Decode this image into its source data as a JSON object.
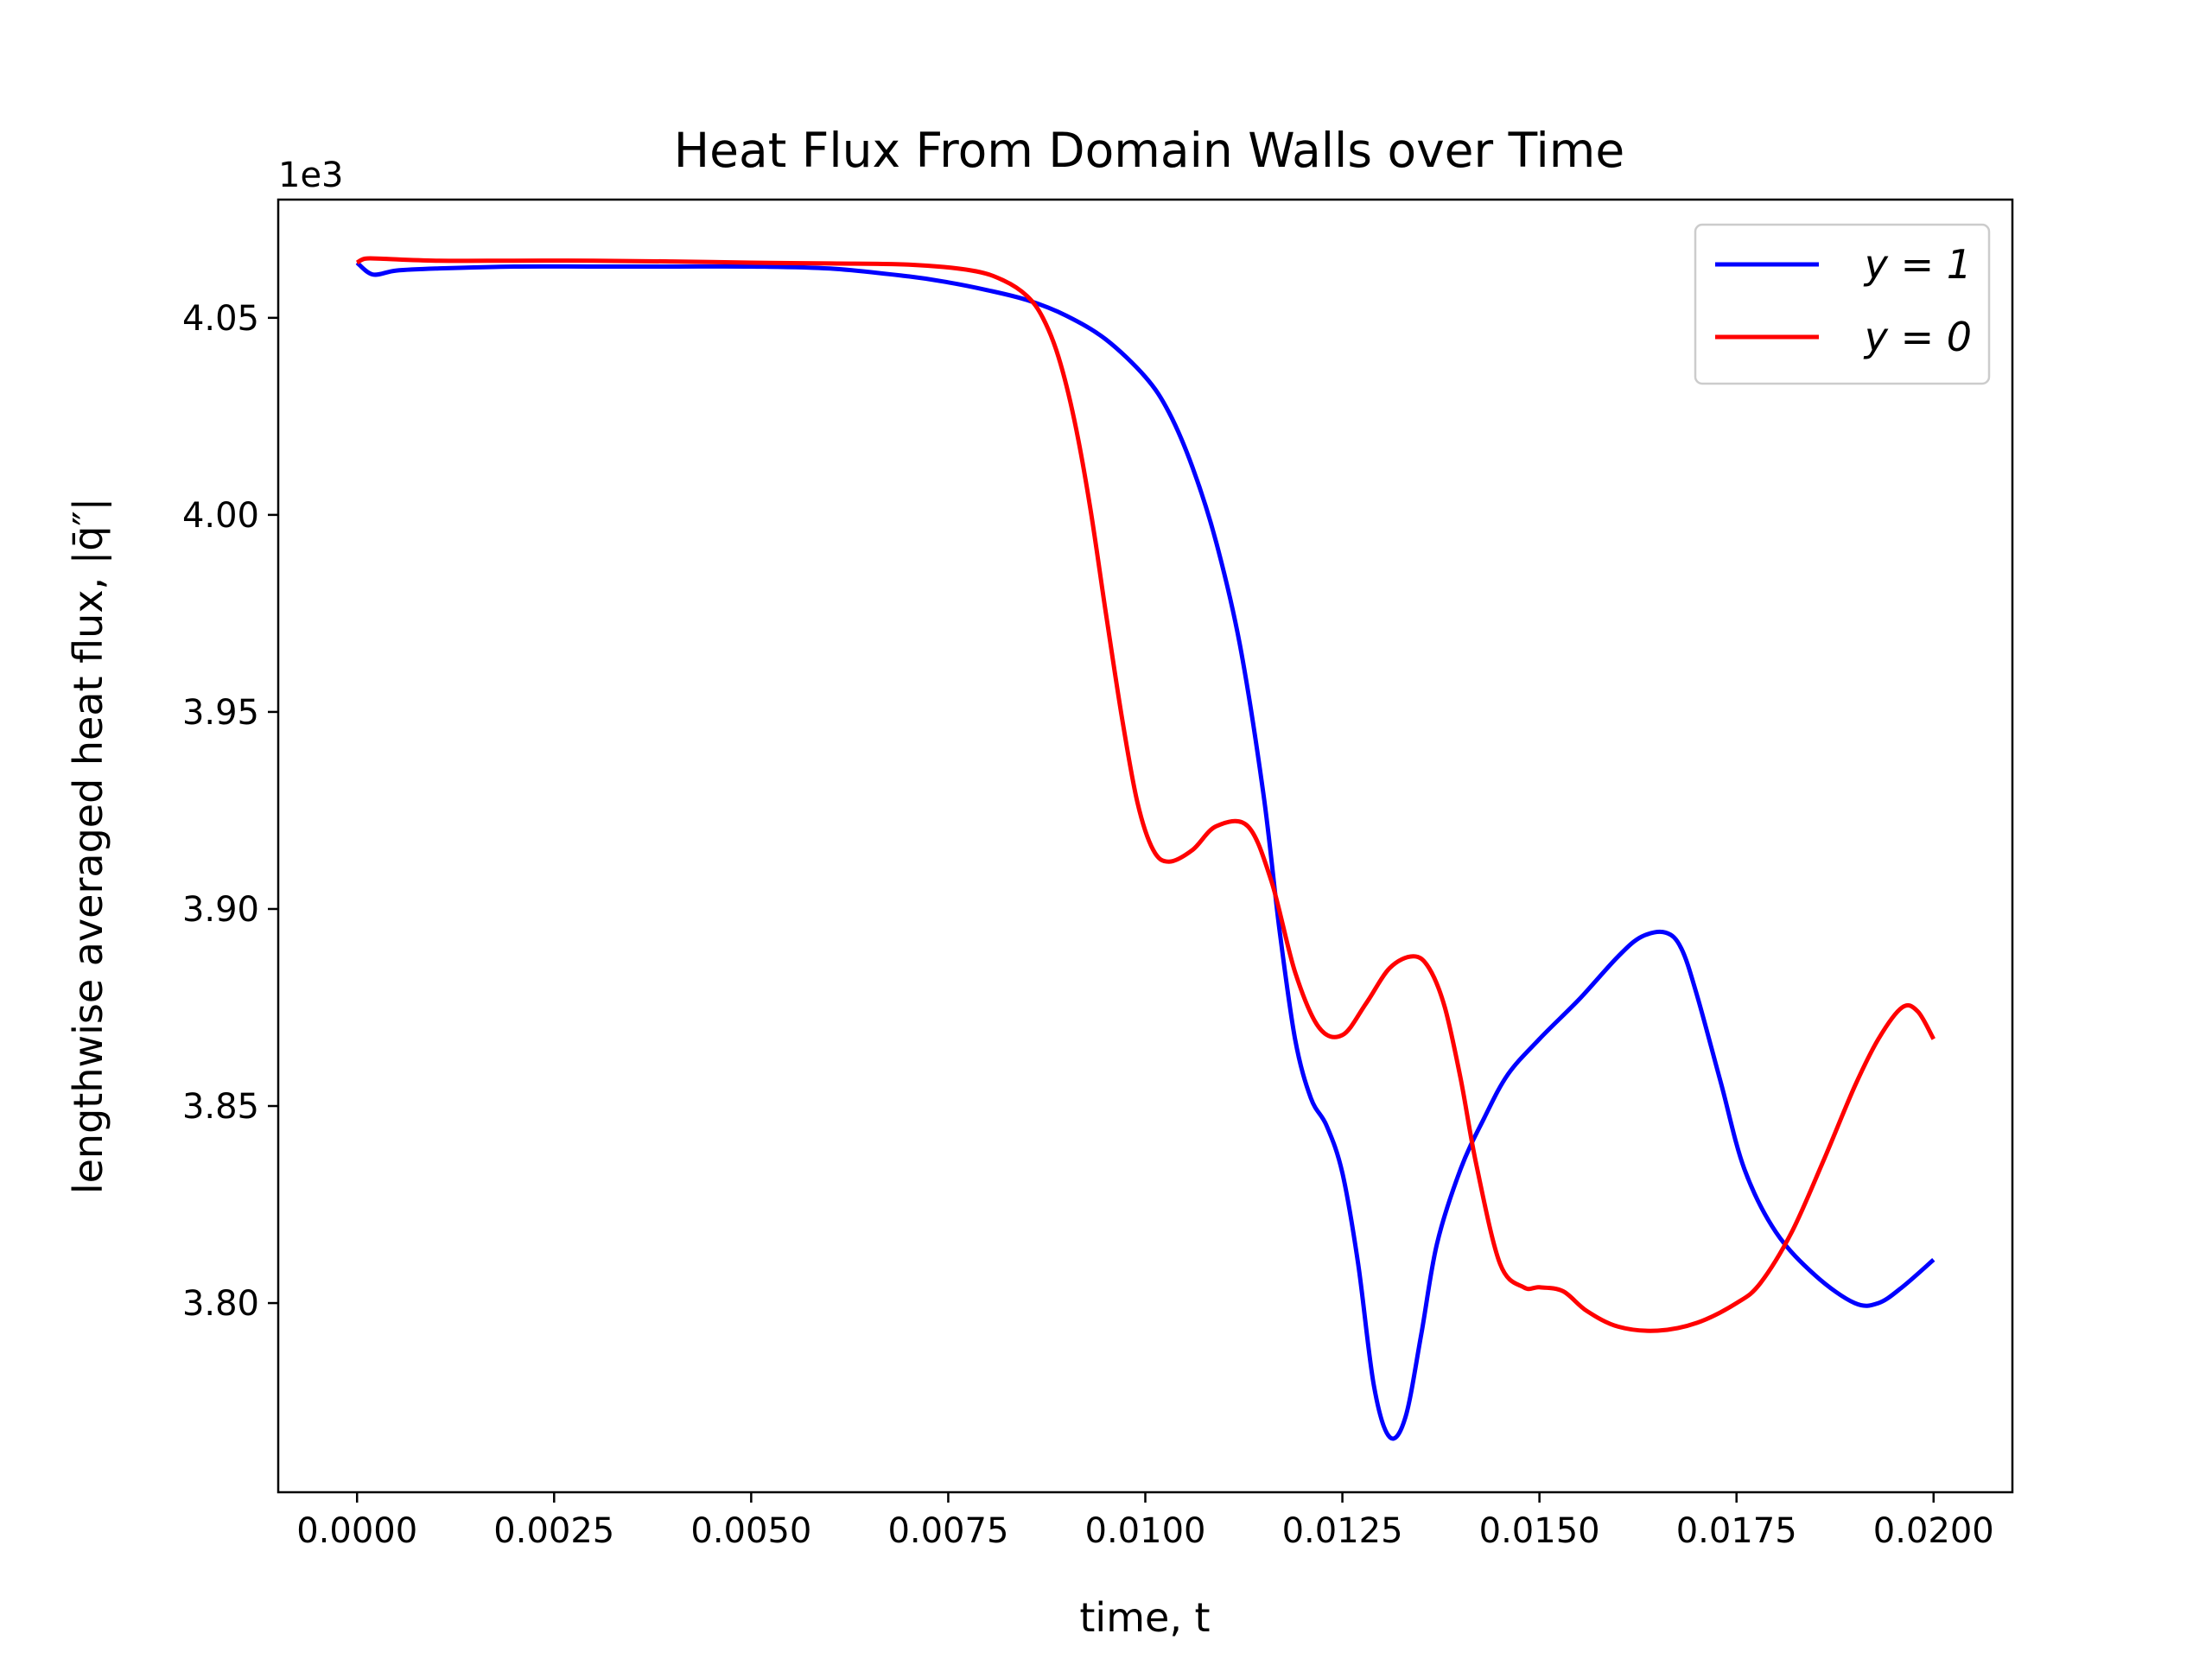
{
  "chart_data": {
    "type": "line",
    "title": "Heat Flux From Domain Walls over Time",
    "xlabel": "time, t",
    "ylabel": "lengthwise averaged heat flux, |q̄″|",
    "y_offset_text": "1e3",
    "xlim": [
      -0.001,
      0.021
    ],
    "ylim": [
      3.752,
      4.08
    ],
    "x_ticks": [
      0.0,
      0.0025,
      0.005,
      0.0075,
      0.01,
      0.0125,
      0.015,
      0.0175,
      0.02
    ],
    "x_tick_labels": [
      "0.0000",
      "0.0025",
      "0.0050",
      "0.0075",
      "0.0100",
      "0.0125",
      "0.0150",
      "0.0175",
      "0.0200"
    ],
    "y_ticks": [
      3.8,
      3.85,
      3.9,
      3.95,
      4.0,
      4.05
    ],
    "y_tick_labels": [
      "3.80",
      "3.85",
      "3.90",
      "3.95",
      "4.00",
      "4.05"
    ],
    "grid": false,
    "legend_position": "top-right",
    "series": [
      {
        "name": "y = 1",
        "color": "#0000ff",
        "x": [
          0.0,
          0.0002,
          0.0005,
          0.001,
          0.002,
          0.003,
          0.004,
          0.005,
          0.006,
          0.007,
          0.0075,
          0.008,
          0.0085,
          0.009,
          0.0095,
          0.01,
          0.0103,
          0.0106,
          0.0109,
          0.0112,
          0.0115,
          0.0117,
          0.0119,
          0.0121,
          0.0123,
          0.0125,
          0.0127,
          0.0129,
          0.0131,
          0.0133,
          0.0135,
          0.0137,
          0.014,
          0.0143,
          0.0146,
          0.015,
          0.0155,
          0.016,
          0.0163,
          0.0166,
          0.0168,
          0.017,
          0.0173,
          0.0176,
          0.018,
          0.0185,
          0.019,
          0.0193,
          0.0196,
          0.02
        ],
        "y": [
          4.064,
          4.061,
          4.062,
          4.0625,
          4.063,
          4.063,
          4.063,
          4.063,
          4.0625,
          4.0605,
          4.059,
          4.057,
          4.0545,
          4.0505,
          4.0445,
          4.035,
          4.026,
          4.012,
          3.993,
          3.967,
          3.929,
          3.895,
          3.867,
          3.852,
          3.845,
          3.833,
          3.81,
          3.779,
          3.766,
          3.771,
          3.792,
          3.815,
          3.834,
          3.847,
          3.858,
          3.867,
          3.877,
          3.888,
          3.893,
          3.894,
          3.89,
          3.878,
          3.856,
          3.834,
          3.818,
          3.807,
          3.8,
          3.8,
          3.804,
          3.811
        ]
      },
      {
        "name": "y = 0",
        "color": "#ff0000",
        "x": [
          0.0,
          0.0001,
          0.0003,
          0.001,
          0.002,
          0.003,
          0.004,
          0.005,
          0.006,
          0.007,
          0.0078,
          0.0082,
          0.0085,
          0.0087,
          0.0089,
          0.0091,
          0.0093,
          0.0095,
          0.0097,
          0.0099,
          0.0101,
          0.0103,
          0.0106,
          0.0109,
          0.0113,
          0.0116,
          0.0119,
          0.0122,
          0.0125,
          0.0128,
          0.0131,
          0.0134,
          0.0136,
          0.0138,
          0.014,
          0.0142,
          0.0145,
          0.0148,
          0.015,
          0.0153,
          0.0156,
          0.016,
          0.0165,
          0.017,
          0.0175,
          0.0178,
          0.0182,
          0.0186,
          0.019,
          0.0193,
          0.0196,
          0.0198,
          0.02
        ],
        "y": [
          4.064,
          4.065,
          4.065,
          4.0645,
          4.0645,
          4.0645,
          4.0643,
          4.064,
          4.0638,
          4.0635,
          4.062,
          4.0595,
          4.0555,
          4.05,
          4.04,
          4.024,
          4.002,
          3.975,
          3.949,
          3.927,
          3.915,
          3.912,
          3.915,
          3.921,
          3.921,
          3.907,
          3.884,
          3.87,
          3.868,
          3.876,
          3.885,
          3.888,
          3.885,
          3.875,
          3.857,
          3.835,
          3.81,
          3.804,
          3.804,
          3.803,
          3.798,
          3.794,
          3.793,
          3.795,
          3.8,
          3.805,
          3.818,
          3.836,
          3.855,
          3.867,
          3.875,
          3.874,
          3.867
        ]
      }
    ]
  }
}
